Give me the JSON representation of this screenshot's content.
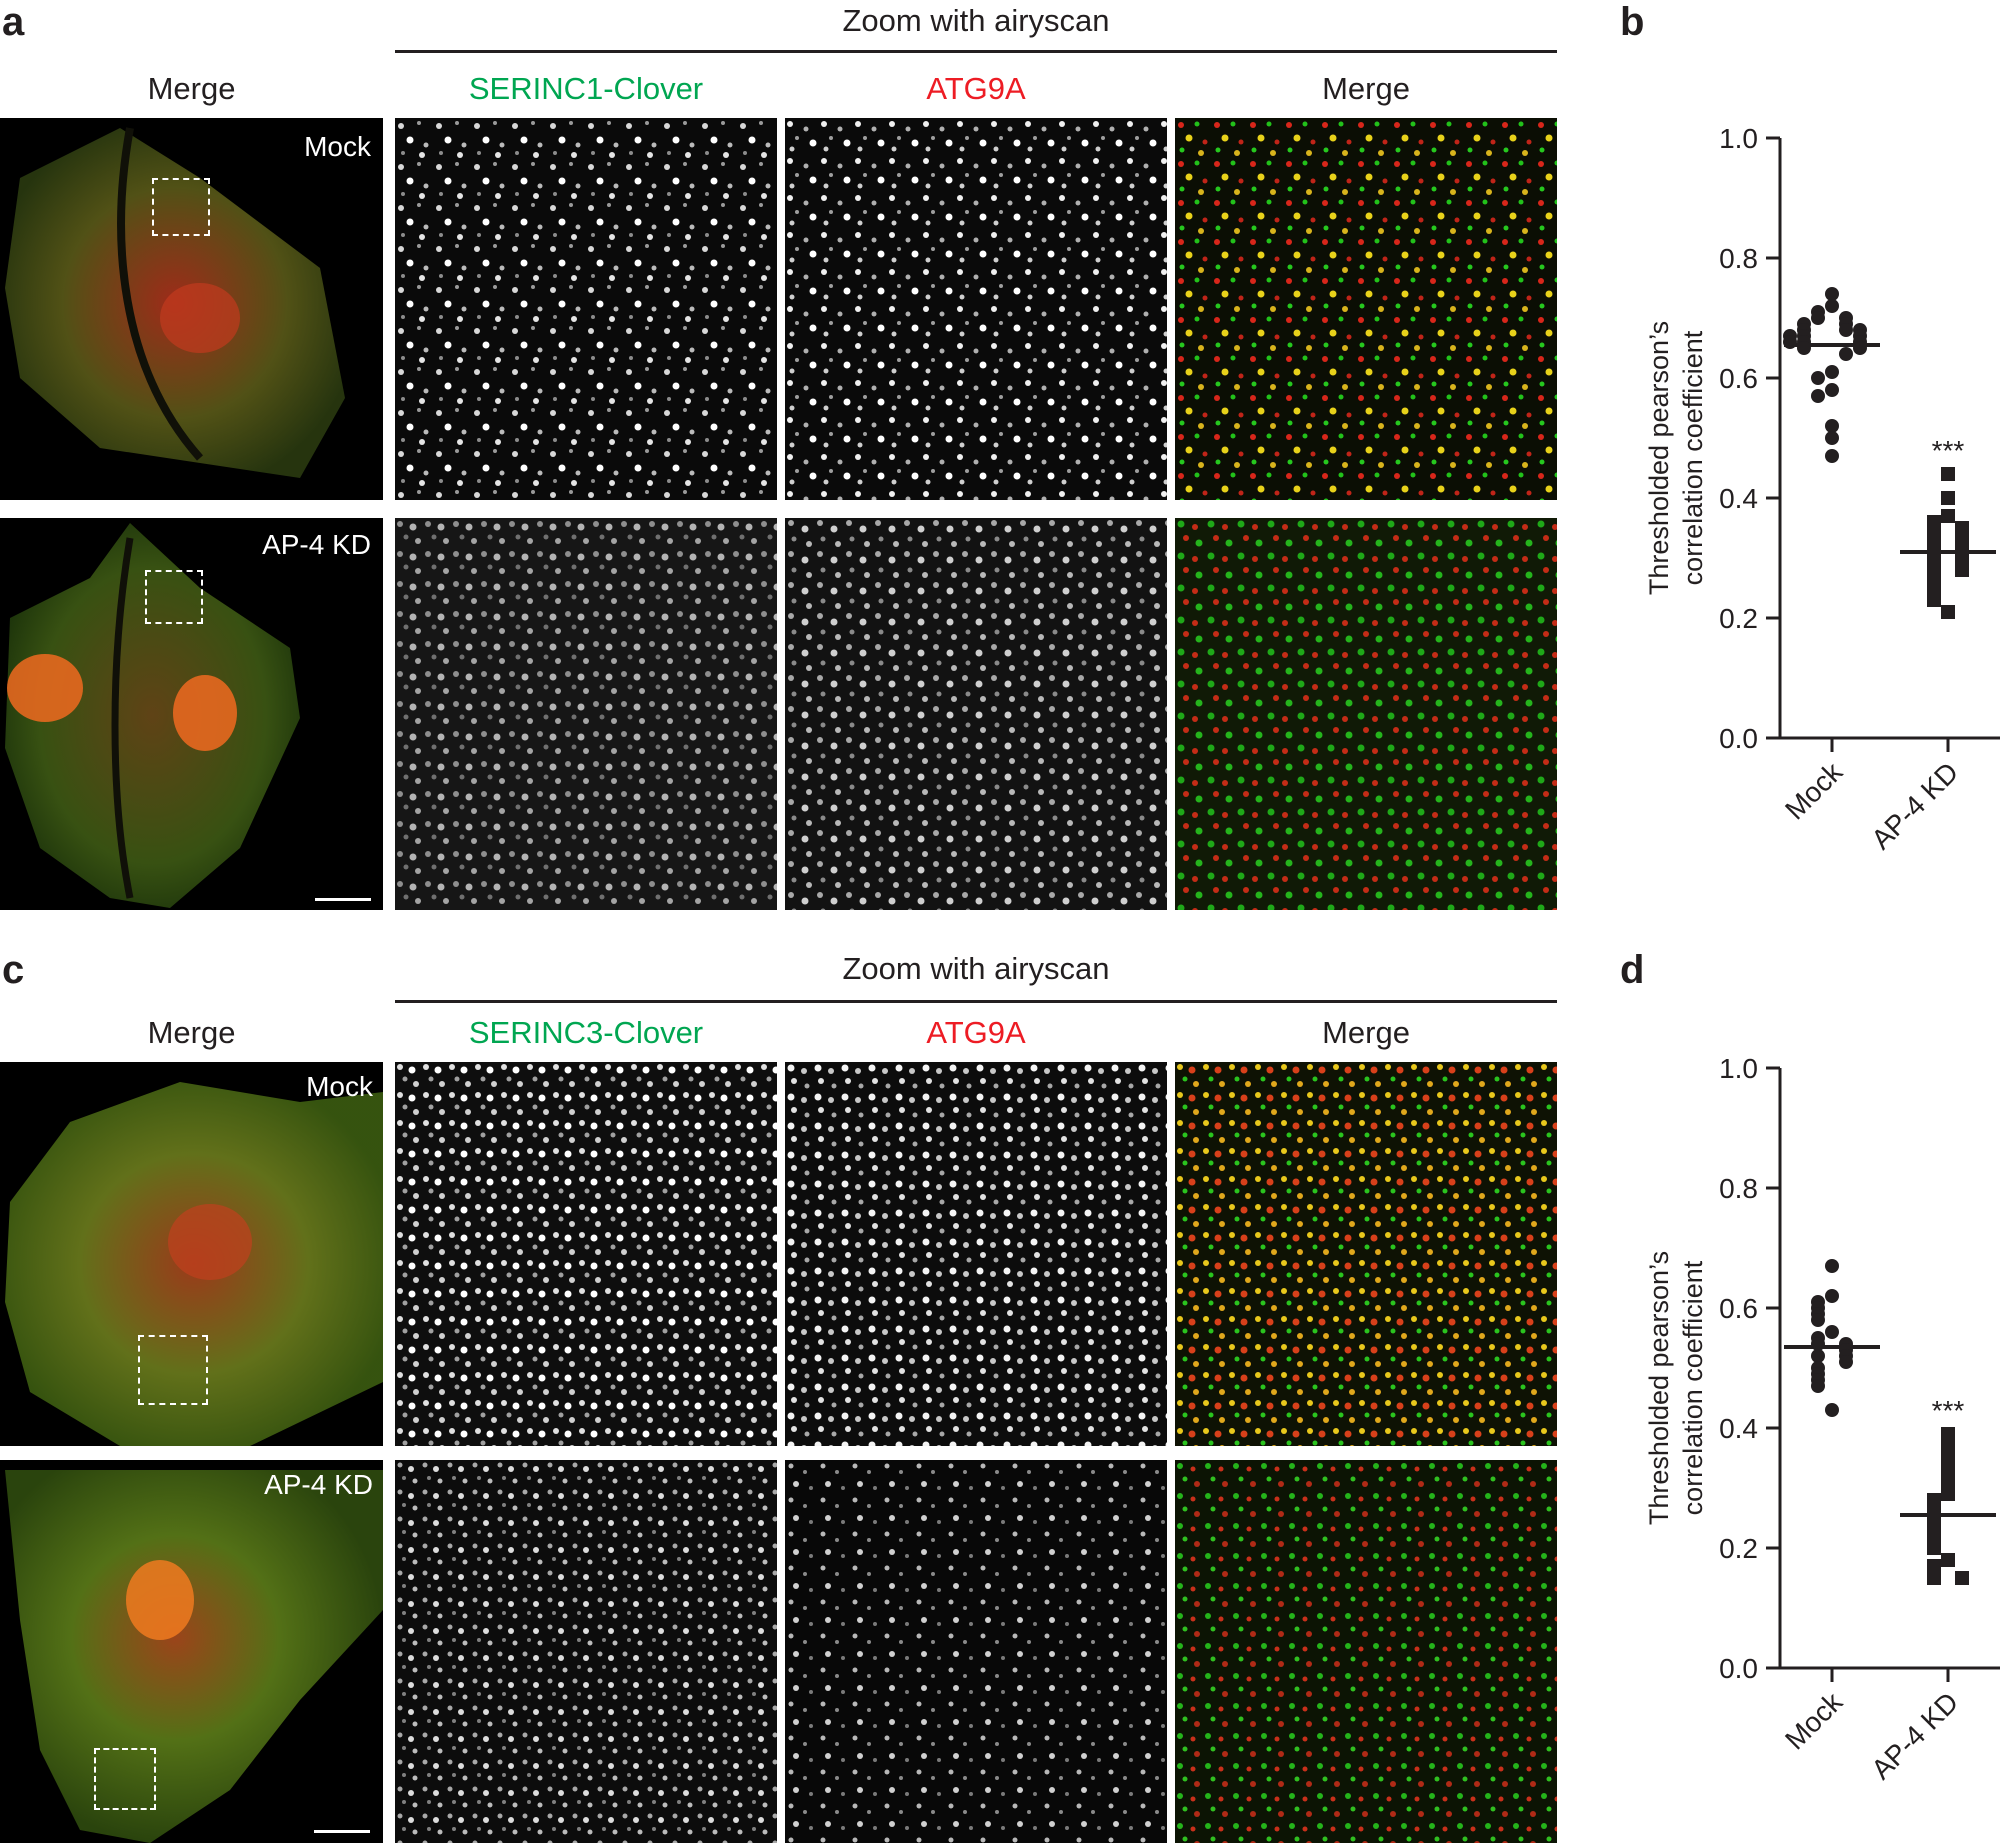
{
  "panels": {
    "a": {
      "letter": "a",
      "zoom_header": "Zoom with airyscan",
      "col_titles": {
        "merge_left": "Merge",
        "green": "SERINC1-Clover",
        "red": "ATG9A",
        "merge_right": "Merge"
      },
      "rows": [
        {
          "condition": "Mock"
        },
        {
          "condition": "AP-4 KD"
        }
      ]
    },
    "b": {
      "letter": "b"
    },
    "c": {
      "letter": "c",
      "zoom_header": "Zoom with airyscan",
      "col_titles": {
        "merge_left": "Merge",
        "green": "SERINC3-Clover",
        "red": "ATG9A",
        "merge_right": "Merge"
      },
      "rows": [
        {
          "condition": "Mock"
        },
        {
          "condition": "AP-4 KD"
        }
      ]
    },
    "d": {
      "letter": "d"
    }
  },
  "colors": {
    "green_label": "#00a651",
    "red_label": "#ed1c24",
    "axis": "#231f20"
  },
  "chart_data": [
    {
      "panel": "b",
      "type": "scatter",
      "ylabel": "Thresholded pearson's correlation coefficient",
      "ylabel_lines": [
        "Thresholded pearson’s",
        "correlation coefficient"
      ],
      "ylim": [
        0.0,
        1.0
      ],
      "yticks": [
        "0.0",
        "0.2",
        "0.4",
        "0.6",
        "0.8",
        "1.0"
      ],
      "categories": [
        "Mock",
        "AP-4 KD"
      ],
      "annotation": "***",
      "series": [
        {
          "marker": "circle",
          "mean": 0.655,
          "values": [
            0.74,
            0.72,
            0.71,
            0.7,
            0.7,
            0.69,
            0.69,
            0.68,
            0.68,
            0.68,
            0.67,
            0.67,
            0.67,
            0.66,
            0.66,
            0.66,
            0.65,
            0.65,
            0.64,
            0.61,
            0.6,
            0.58,
            0.57,
            0.52,
            0.5,
            0.47
          ]
        },
        {
          "marker": "square",
          "mean": 0.31,
          "values": [
            0.44,
            0.4,
            0.37,
            0.36,
            0.35,
            0.35,
            0.34,
            0.33,
            0.33,
            0.32,
            0.31,
            0.31,
            0.3,
            0.29,
            0.29,
            0.28,
            0.27,
            0.26,
            0.25,
            0.24,
            0.23,
            0.21
          ]
        }
      ]
    },
    {
      "panel": "d",
      "type": "scatter",
      "ylabel": "Thresholded pearson's correlation coefficient",
      "ylabel_lines": [
        "Thresholded pearson’s",
        "correlation coefficient"
      ],
      "ylim": [
        0.0,
        1.0
      ],
      "yticks": [
        "0.0",
        "0.2",
        "0.4",
        "0.6",
        "0.8",
        "1.0"
      ],
      "categories": [
        "Mock",
        "AP-4 KD"
      ],
      "annotation": "***",
      "series": [
        {
          "marker": "circle",
          "mean": 0.535,
          "values": [
            0.67,
            0.62,
            0.61,
            0.6,
            0.59,
            0.58,
            0.56,
            0.55,
            0.54,
            0.54,
            0.53,
            0.52,
            0.52,
            0.51,
            0.5,
            0.49,
            0.48,
            0.47,
            0.43
          ]
        },
        {
          "marker": "square",
          "mean": 0.255,
          "values": [
            0.39,
            0.37,
            0.35,
            0.33,
            0.31,
            0.29,
            0.28,
            0.27,
            0.26,
            0.25,
            0.24,
            0.23,
            0.22,
            0.21,
            0.2,
            0.18,
            0.17,
            0.16,
            0.15,
            0.15
          ]
        }
      ]
    }
  ]
}
